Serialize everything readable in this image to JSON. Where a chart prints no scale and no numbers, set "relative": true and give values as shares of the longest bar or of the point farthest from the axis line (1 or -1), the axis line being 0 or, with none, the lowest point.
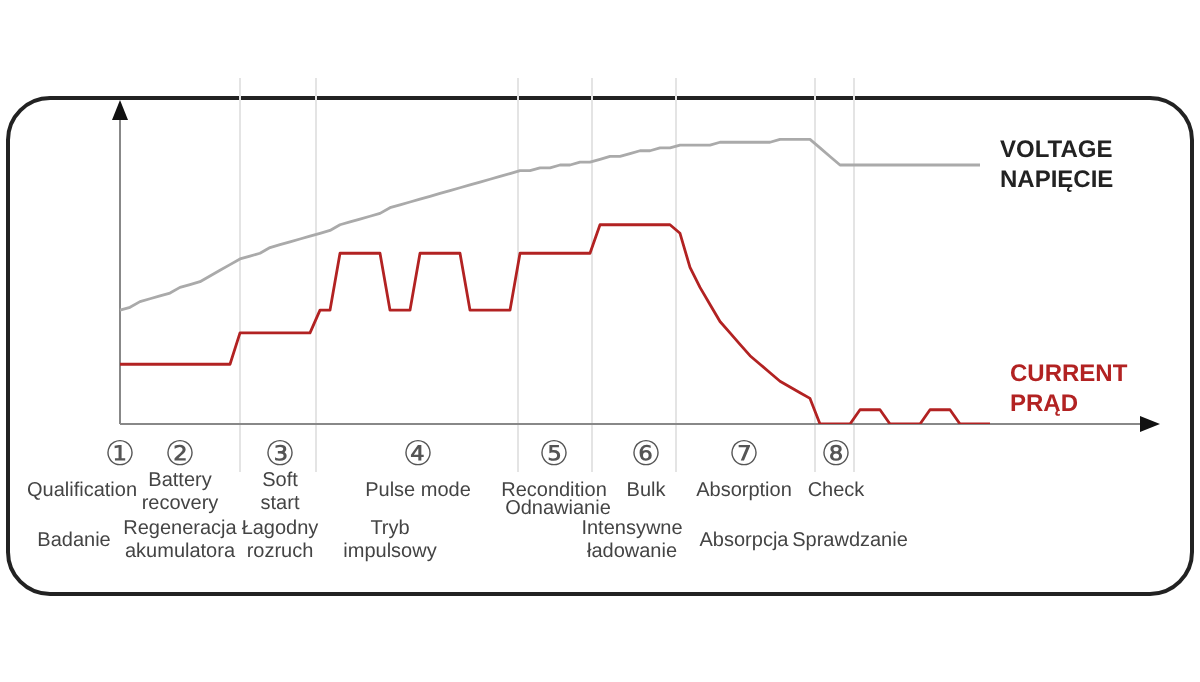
{
  "chart_data": {
    "type": "line",
    "relative": true,
    "marker": "none",
    "categories": [
      null,
      null,
      null,
      null,
      null,
      null,
      null,
      null,
      null,
      null,
      null,
      null,
      null,
      null,
      null,
      null,
      null,
      null,
      null,
      null,
      null,
      null,
      null,
      null,
      null,
      null,
      null,
      null,
      null,
      null,
      null,
      null,
      null,
      null,
      null,
      null,
      null,
      null,
      null,
      null,
      null,
      null,
      null,
      null,
      null,
      null,
      null,
      null,
      null,
      null,
      null,
      null,
      null,
      null,
      null,
      null,
      null,
      null,
      null,
      null,
      null,
      null,
      null,
      null,
      null,
      null,
      null,
      null,
      null,
      null,
      null,
      null,
      null,
      null,
      null,
      null,
      null,
      null,
      null,
      null,
      null,
      null,
      null,
      null,
      null,
      null,
      null,
      null,
      null
    ],
    "series": [
      {
        "name": "VOLTAGE NAPIĘCIE",
        "color": "#aaaaaa",
        "values": [
          0.4,
          0.41,
          0.43,
          0.44,
          0.45,
          0.46,
          0.48,
          0.49,
          0.5,
          0.52,
          0.54,
          0.56,
          0.58,
          0.59,
          0.6,
          0.62,
          0.63,
          0.64,
          0.65,
          0.66,
          0.67,
          0.68,
          0.7,
          0.71,
          0.72,
          0.73,
          0.74,
          0.76,
          0.77,
          0.78,
          0.79,
          0.8,
          0.81,
          0.82,
          0.83,
          0.84,
          0.85,
          0.86,
          0.87,
          0.88,
          0.89,
          0.89,
          0.9,
          0.9,
          0.91,
          0.91,
          0.92,
          0.92,
          0.93,
          0.94,
          0.94,
          0.95,
          0.96,
          0.96,
          0.97,
          0.97,
          0.98,
          0.98,
          0.98,
          0.98,
          0.99,
          0.99,
          0.99,
          0.99,
          0.99,
          0.99,
          1.0,
          1.0,
          1.0,
          1.0,
          0.97,
          0.94,
          0.91,
          0.91,
          0.91,
          0.91,
          0.91,
          0.91,
          0.91,
          0.91,
          0.91,
          0.91,
          0.91,
          0.91,
          0.91,
          0.91,
          0.91,
          null,
          null
        ]
      },
      {
        "name": "CURRENT PRĄD",
        "color": "#b22222",
        "values": [
          0.21,
          0.21,
          0.21,
          0.21,
          0.21,
          0.21,
          0.21,
          0.21,
          0.21,
          0.21,
          0.21,
          0.21,
          0.32,
          0.32,
          0.32,
          0.32,
          0.32,
          0.32,
          0.32,
          0.32,
          0.4,
          0.4,
          0.6,
          0.6,
          0.6,
          0.6,
          0.6,
          0.4,
          0.4,
          0.4,
          0.6,
          0.6,
          0.6,
          0.6,
          0.6,
          0.4,
          0.4,
          0.4,
          0.4,
          0.4,
          0.6,
          0.6,
          0.6,
          0.6,
          0.6,
          0.6,
          0.6,
          0.6,
          0.7,
          0.7,
          0.7,
          0.7,
          0.7,
          0.7,
          0.7,
          0.7,
          0.67,
          0.55,
          0.48,
          0.42,
          0.36,
          0.32,
          0.28,
          0.24,
          0.21,
          0.18,
          0.15,
          0.13,
          0.11,
          0.09,
          0,
          0,
          0,
          0,
          0.05,
          0.05,
          0.05,
          0,
          0,
          0,
          0,
          0.05,
          0.05,
          0.05,
          0,
          0,
          0,
          0,
          null
        ]
      }
    ],
    "annotations": [
      "①",
      "②",
      "③",
      "④",
      "⑤",
      "⑥",
      "⑦",
      "⑧",
      "Qualification",
      "Battery\nrecovery",
      "Soft\nstart",
      "Pulse mode",
      "Recondition",
      "Bulk",
      "Absorption",
      "Check",
      "Odnawianie",
      "Badanie",
      "Regeneracja\nakumulatora",
      "Łagodny\nrozruch",
      "Tryb\nimpulsowy",
      "Intensywne\nładowanie",
      "Absorpcja",
      "Sprawdzanie"
    ]
  }
}
